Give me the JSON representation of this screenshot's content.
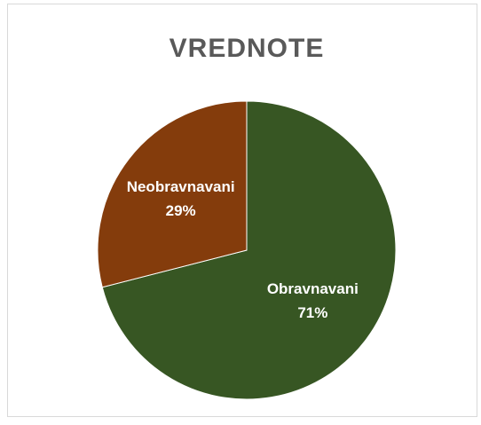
{
  "chart_data": {
    "type": "pie",
    "title": "VREDNOTE",
    "categories": [
      "Obravnavani",
      "Neobravnavani"
    ],
    "values": [
      71,
      29
    ],
    "value_labels": [
      "71%",
      "29%"
    ],
    "colors": [
      "#375623",
      "#843C0C"
    ]
  }
}
